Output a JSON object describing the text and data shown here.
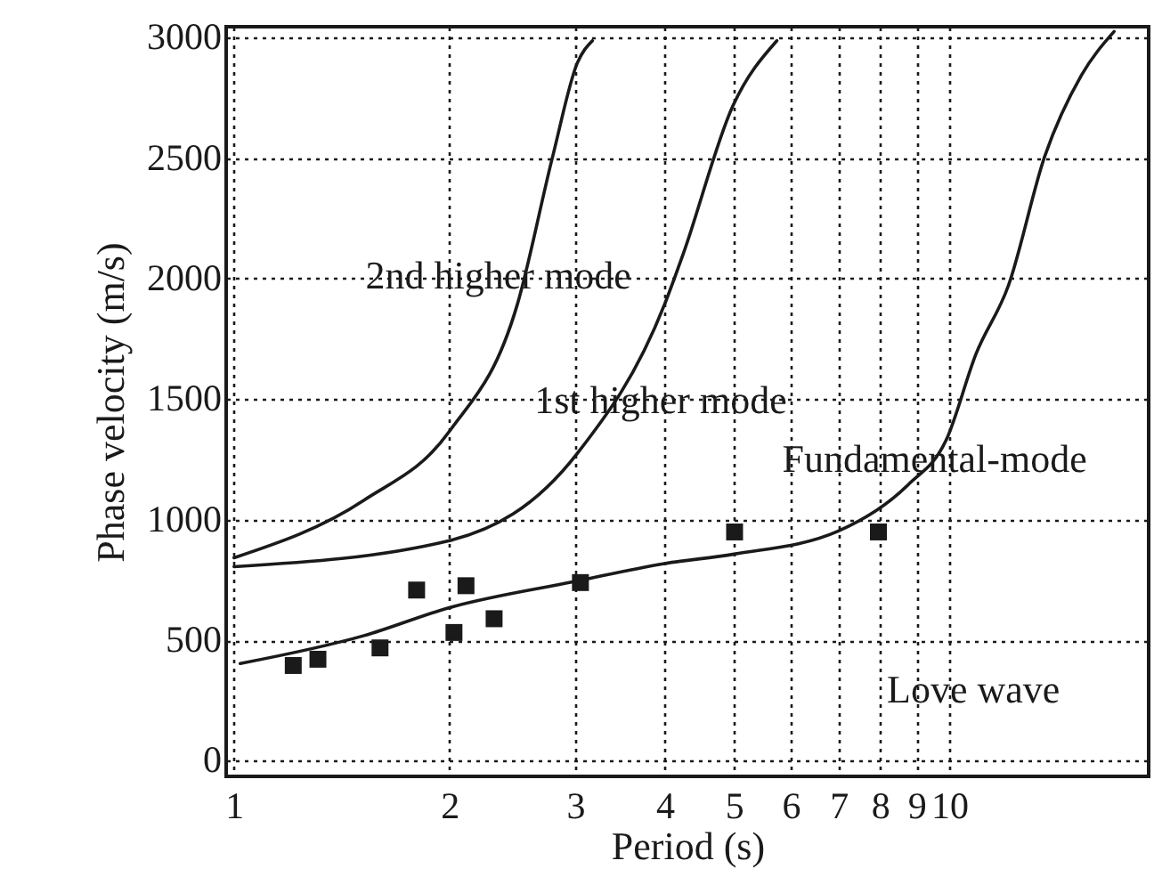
{
  "chart_data": {
    "type": "line",
    "xlabel": "Period (s)",
    "ylabel": "Phase velocity (m/s)",
    "log": "x",
    "grid": true,
    "xlim": [
      0.975,
      19
    ],
    "xticks": [
      1,
      2,
      3,
      4,
      5,
      6,
      7,
      8,
      9,
      10
    ],
    "ylim": [
      -65,
      3045
    ],
    "yticks": [
      0,
      500,
      1000,
      1500,
      2000,
      2500,
      3000
    ],
    "series": [
      {
        "color": "#1a1a1a",
        "line_style": "solid",
        "x": [
          1.0,
          1.52,
          2.0,
          2.49,
          2.79,
          3.02,
          3.17
        ],
        "values": [
          842,
          1081,
          1366,
          1894,
          2508,
          2895,
          2987
        ]
      },
      {
        "color": "#1a1a1a",
        "line_style": "solid",
        "x": [
          1.0,
          2.0,
          3.02,
          4.0,
          4.24,
          4.98,
          5.74
        ],
        "values": [
          805,
          913,
          1275,
          1894,
          2097,
          2715,
          2987
        ]
      },
      {
        "color": "#1a1a1a",
        "line_style": "solid",
        "x": [
          1.02,
          1.52,
          2.0,
          3.0,
          4.0,
          5.0,
          7.0,
          8.76,
          9.9,
          10.9,
          12.1,
          13.6,
          15.3,
          17.0
        ],
        "values": [
          403,
          519,
          635,
          744,
          818,
          857,
          953,
          1145,
          1330,
          1688,
          1972,
          2508,
          2843,
          3025
        ]
      },
      {
        "type": "scatter",
        "color": "#1a1a1a",
        "marker": "square",
        "x": [
          1.21,
          1.31,
          1.6,
          1.8,
          2.03,
          2.11,
          2.31,
          3.05,
          5.01,
          7.96
        ],
        "values": [
          395,
          421,
          468,
          708,
          532,
          726,
          589,
          739,
          949,
          949
        ]
      }
    ],
    "annotations": [
      "2nd higher mode",
      "1st higher mode",
      "Fundamental-mode",
      "Love wave"
    ]
  }
}
